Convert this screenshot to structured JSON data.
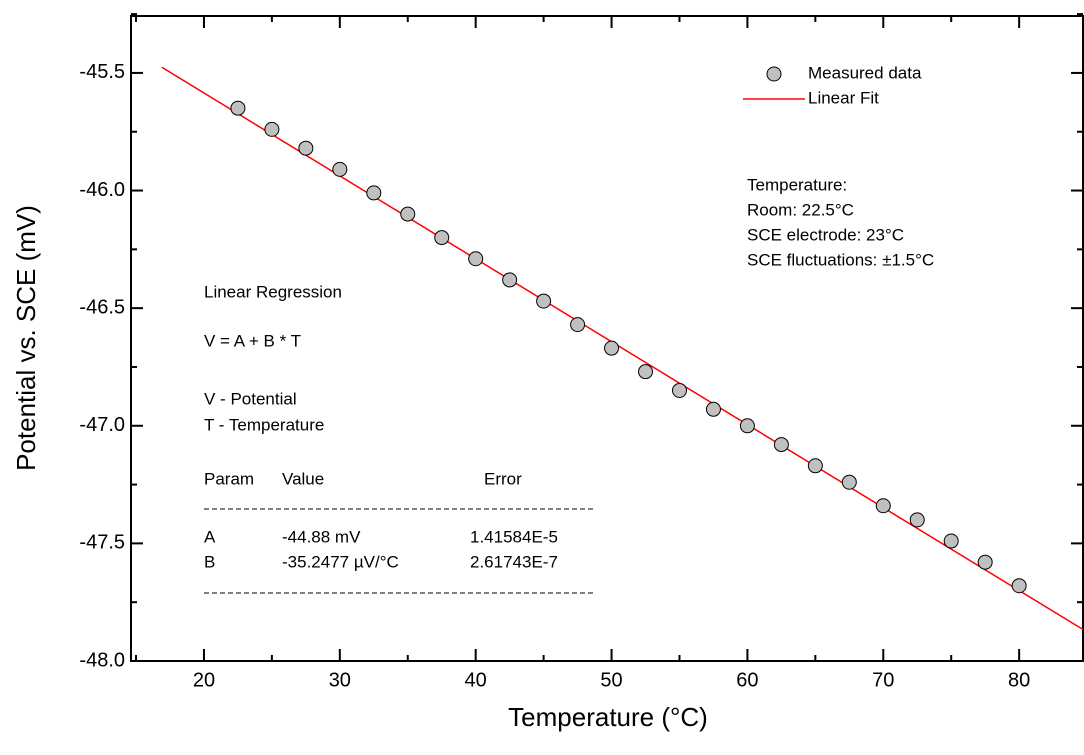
{
  "chart_data": {
    "type": "scatter",
    "xlabel": "Temperature (°C)",
    "ylabel": "Potential vs. SCE (mV)",
    "xlim": [
      14.63,
      84.7
    ],
    "ylim": [
      -48.0,
      -45.258
    ],
    "xticks": [
      20,
      30,
      40,
      50,
      60,
      70,
      80
    ],
    "yticks": [
      {
        "value": -45.5,
        "label": "-45.5"
      },
      {
        "value": -46.0,
        "label": "-46.0"
      },
      {
        "value": -46.5,
        "label": "-46.5"
      },
      {
        "value": -47.0,
        "label": "-47.0"
      },
      {
        "value": -47.5,
        "label": "-47.5"
      },
      {
        "value": -48.0,
        "label": "-48.0"
      }
    ],
    "xminorticks": [
      15,
      25,
      35,
      45,
      55,
      65,
      75
    ],
    "yminorticks": [
      -45.25,
      -45.75,
      -46.25,
      -46.75,
      -47.25,
      -47.75
    ],
    "legend": "upper right",
    "series": [
      {
        "name": "Measured data",
        "type": "scatter",
        "color": "#c0c0c0",
        "x": [
          22.5,
          25,
          27.5,
          30,
          32.5,
          35,
          37.5,
          40,
          42.5,
          45,
          47.5,
          50,
          52.5,
          55,
          57.5,
          60,
          62.5,
          65,
          67.5,
          70,
          72.5,
          75,
          77.5,
          80
        ],
        "values": [
          -45.65,
          -45.74,
          -45.82,
          -45.91,
          -46.01,
          -46.1,
          -46.2,
          -46.29,
          -46.38,
          -46.47,
          -46.57,
          -46.67,
          -46.77,
          -46.85,
          -46.93,
          -47.0,
          -47.08,
          -47.17,
          -47.24,
          -47.34,
          -47.4,
          -47.49,
          -47.58,
          -47.68
        ]
      },
      {
        "name": "Linear Fit",
        "type": "line",
        "color": "#ff0000",
        "x": [
          16.9,
          84.7
        ],
        "values": [
          -45.476,
          -47.866
        ]
      }
    ],
    "annotations": {
      "conditions": [
        "Temperature:",
        "Room: 22.5°C",
        "SCE electrode: 23°C",
        "SCE fluctuations: ±1.5°C"
      ],
      "regression": {
        "title": "Linear Regression",
        "equation": "V = A + B * T",
        "definitions": [
          "V - Potential",
          "T - Temperature"
        ],
        "header": [
          "Param",
          "Value",
          "Error"
        ],
        "rows": [
          [
            "A",
            "-44.88 mV",
            "1.41584E-5"
          ],
          [
            "B",
            "-35.2477 µV/°C",
            "2.61743E-7"
          ]
        ]
      }
    }
  }
}
